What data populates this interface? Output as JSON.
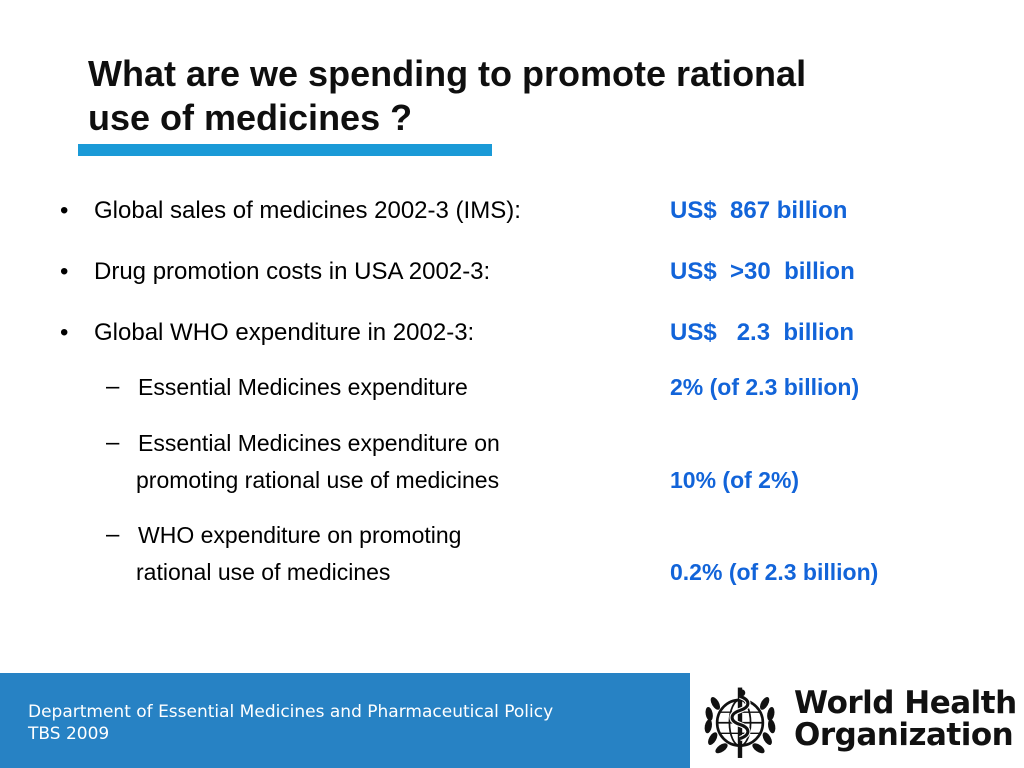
{
  "slide": {
    "title_line1": "What are we spending to promote rational",
    "title_line2": "use of medicines ?",
    "accent_color": "#1a9ad7",
    "value_color": "#1264d9"
  },
  "items": [
    {
      "bullet": "•",
      "label": "Global sales of medicines 2002-3 (IMS):",
      "value": "US$  867 billion"
    },
    {
      "bullet": "•",
      "label": "Drug promotion costs in USA 2002-3:",
      "value": "US$  >30  billion"
    },
    {
      "bullet": "•",
      "label": "Global WHO expenditure in 2002-3:",
      "value": "US$   2.3  billion"
    }
  ],
  "subitems": [
    {
      "dash": "–",
      "label_line1": "Essential Medicines expenditure",
      "label_line2": "",
      "value": "2% (of 2.3 billion)"
    },
    {
      "dash": "–",
      "label_line1": "Essential Medicines expenditure on",
      "label_line2": "promoting rational use of medicines",
      "value": "10% (of 2%)"
    },
    {
      "dash": "–",
      "label_line1": "WHO expenditure on promoting",
      "label_line2": "rational use of medicines",
      "value": "0.2% (of 2.3 billion)"
    }
  ],
  "footer": {
    "department": "Department of Essential Medicines and Pharmaceutical Policy",
    "event": "TBS 2009",
    "background_color": "#2782c4",
    "org_line1": "World Health",
    "org_line2": "Organization",
    "emblem_icon": "who-emblem-icon"
  }
}
